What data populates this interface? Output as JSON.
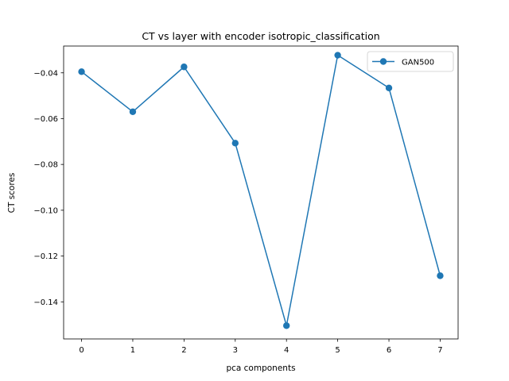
{
  "chart_data": {
    "type": "line",
    "title": "CT vs layer with encoder isotropic_classification",
    "xlabel": "pca components",
    "ylabel": "CT scores",
    "x": [
      0,
      1,
      2,
      3,
      4,
      5,
      6,
      7
    ],
    "xticks": [
      "0",
      "1",
      "2",
      "3",
      "4",
      "5",
      "6",
      "7"
    ],
    "xlim": [
      -0.35,
      7.35
    ],
    "ylim": [
      -0.1562,
      -0.0283
    ],
    "yticks": [
      {
        "value": -0.04,
        "label": "−0.04"
      },
      {
        "value": -0.06,
        "label": "−0.06"
      },
      {
        "value": -0.08,
        "label": "−0.08"
      },
      {
        "value": -0.1,
        "label": "−0.10"
      },
      {
        "value": -0.12,
        "label": "−0.12"
      },
      {
        "value": -0.14,
        "label": "−0.14"
      }
    ],
    "series": [
      {
        "name": "GAN500",
        "color": "#1f77b4",
        "marker": "circle",
        "values": [
          -0.0395,
          -0.057,
          -0.0374,
          -0.0707,
          -0.1504,
          -0.0323,
          -0.0466,
          -0.1286
        ]
      }
    ],
    "legend": "top-right",
    "grid": false
  }
}
